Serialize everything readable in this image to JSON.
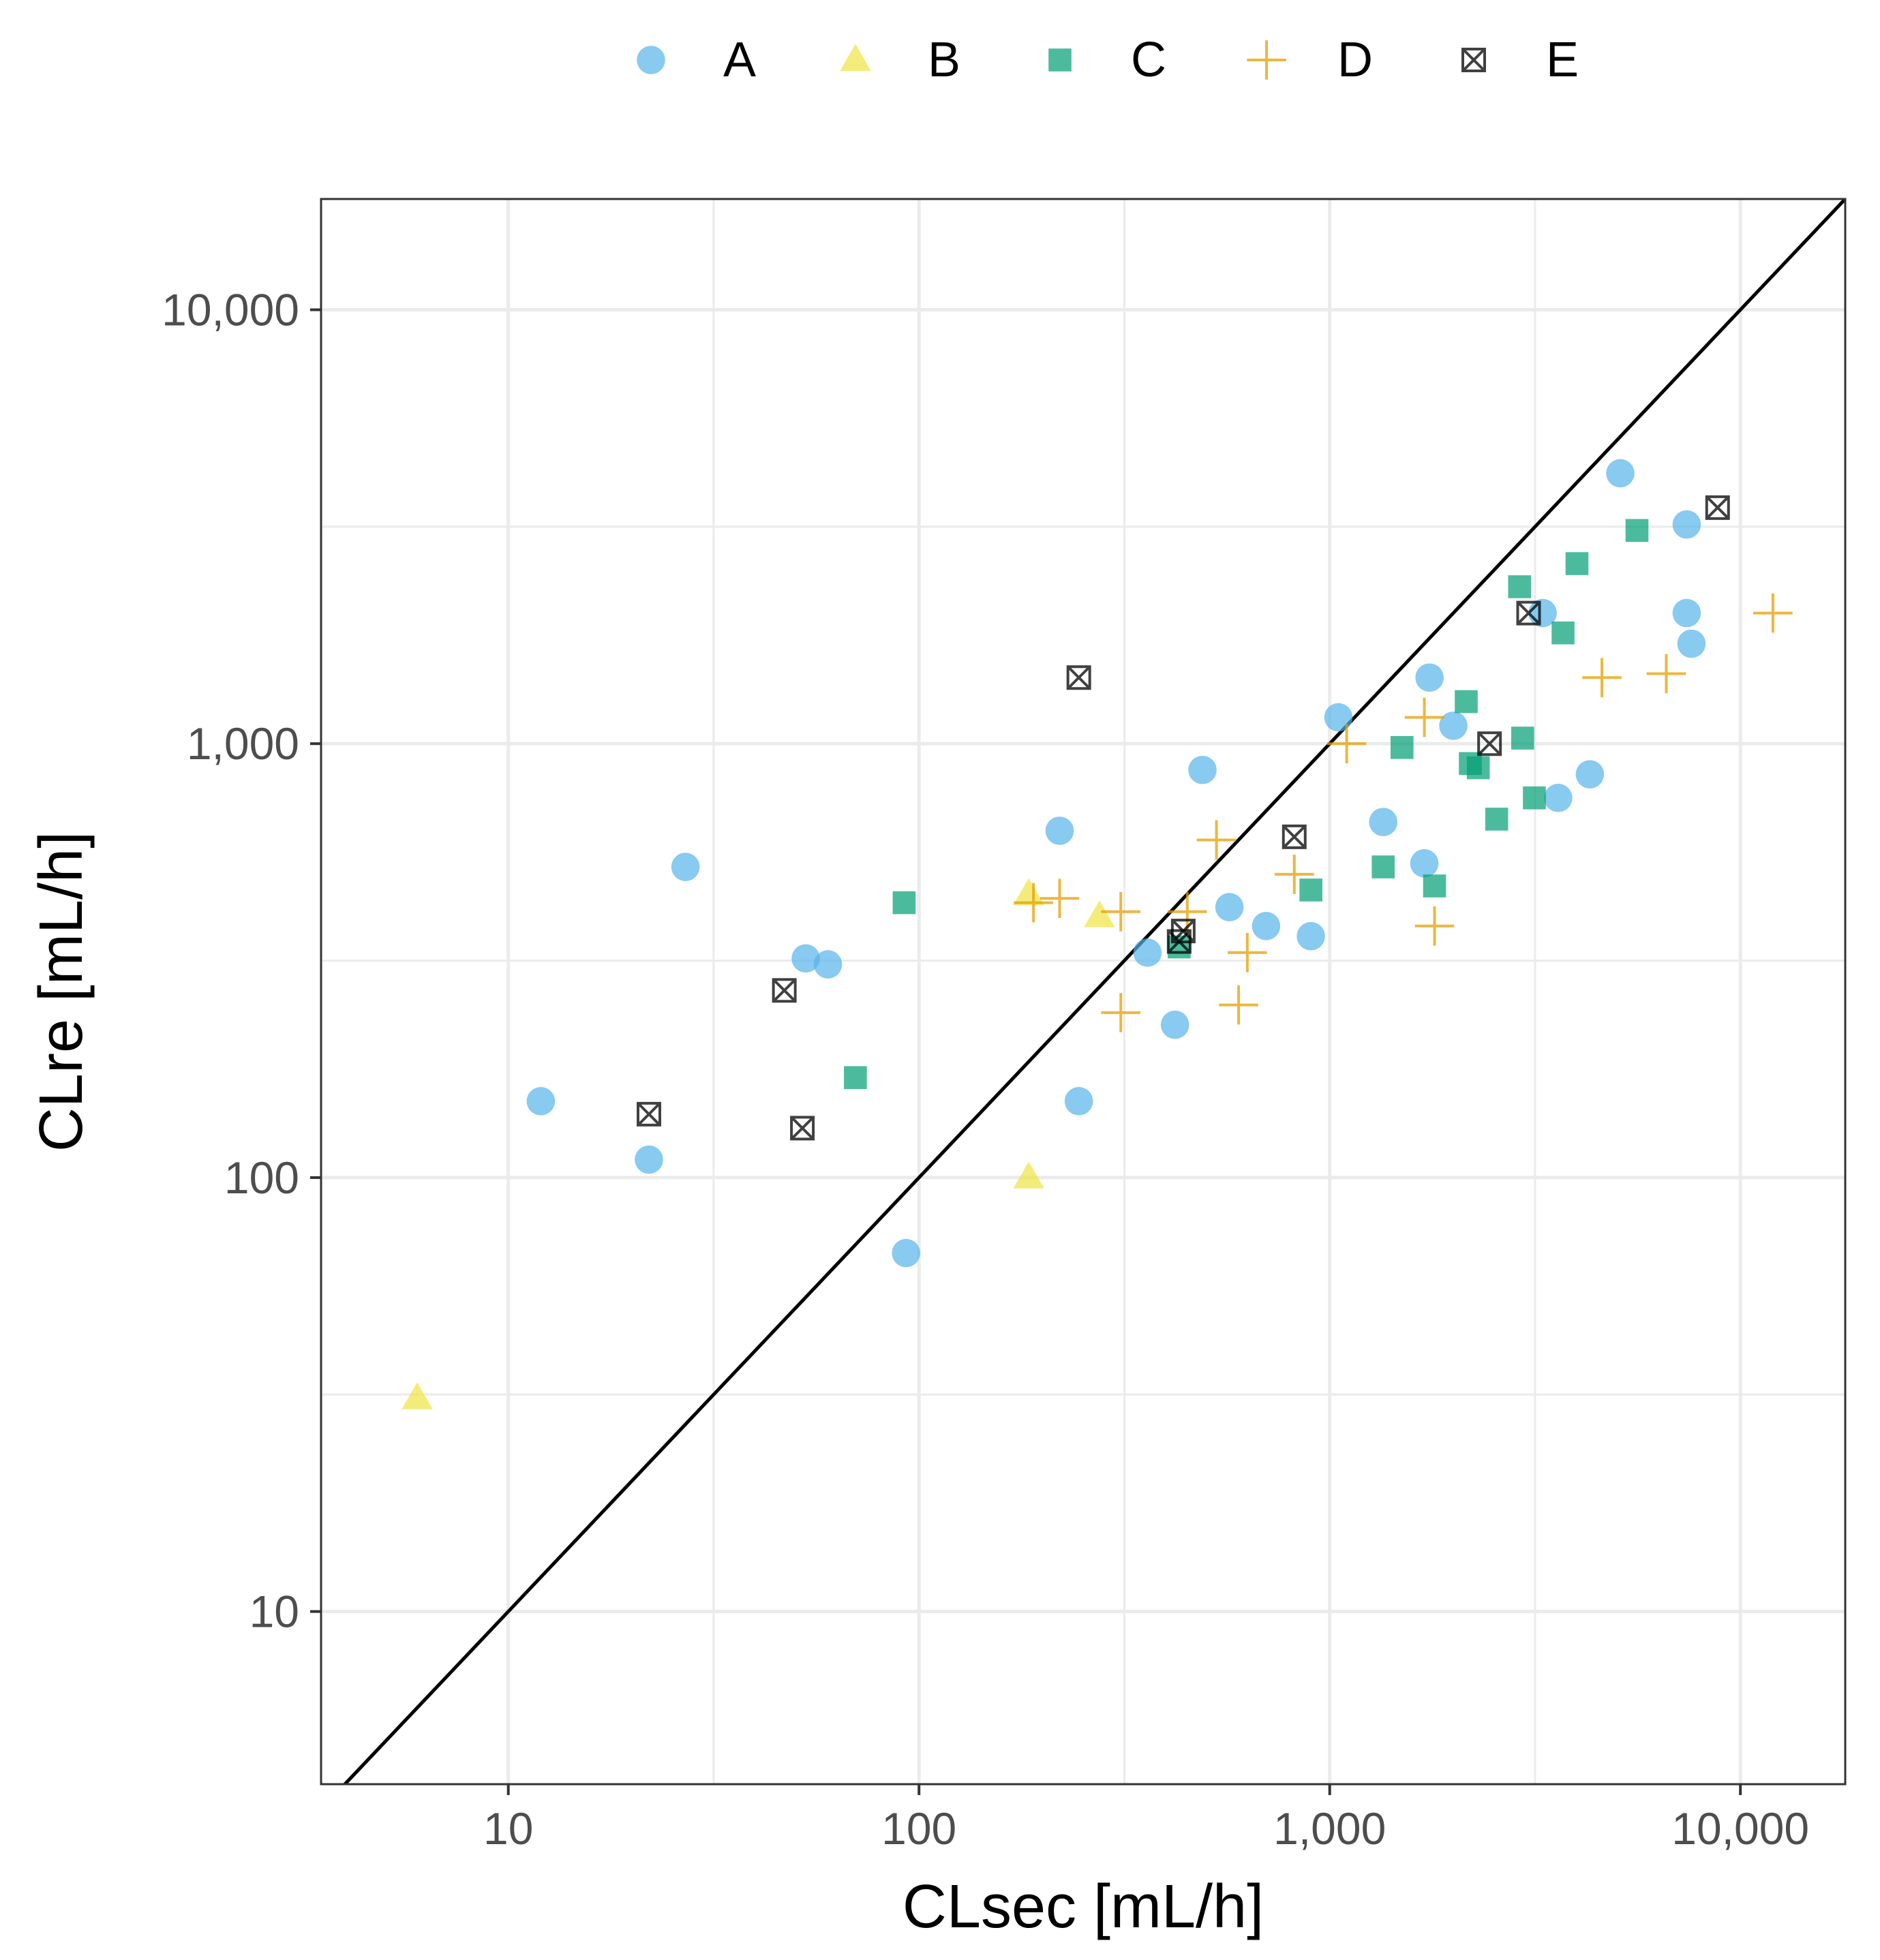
{
  "chart_data": {
    "type": "scatter",
    "title": "",
    "xlabel": "CLsec [mL/h]",
    "ylabel": "CLre [mL/h]",
    "xscale": "log10",
    "yscale": "log10",
    "xlim": [
      3.5,
      18000
    ],
    "ylim": [
      4,
      18000
    ],
    "x_ticks": [
      10,
      100,
      1000,
      10000
    ],
    "x_tick_labels": [
      "10",
      "100",
      "1,000",
      "10,000"
    ],
    "y_ticks": [
      10,
      100,
      1000,
      10000
    ],
    "y_tick_labels": [
      "10",
      "100",
      "1,000",
      "10,000"
    ],
    "grid": true,
    "reference_line": "identity (y = x)",
    "legend_position": "top",
    "series": [
      {
        "name": "A",
        "marker": "circle",
        "color": "#56B4E9",
        "x": [
          12,
          22,
          27,
          53,
          60,
          93,
          220,
          245,
          360,
          420,
          490,
          570,
          700,
          900,
          1050,
          1350,
          1700,
          1750,
          2000,
          3300,
          3600,
          4300,
          5100,
          7400,
          7400,
          7600
        ],
        "y": [
          150,
          110,
          520,
          320,
          310,
          67,
          630,
          150,
          330,
          225,
          870,
          420,
          380,
          360,
          1150,
          660,
          530,
          1420,
          1100,
          2000,
          750,
          850,
          4200,
          3200,
          2000,
          1700
        ]
      },
      {
        "name": "B",
        "marker": "triangle",
        "color": "#F0E442",
        "x": [
          6,
          185,
          185,
          275
        ],
        "y": [
          31,
          100,
          450,
          400
        ]
      },
      {
        "name": "C",
        "marker": "square",
        "color": "#009E73",
        "x": [
          70,
          92,
          430,
          900,
          1350,
          1500,
          1800,
          2150,
          2200,
          2300,
          2550,
          2900,
          2950,
          3150,
          3700,
          4000,
          5600
        ],
        "y": [
          170,
          430,
          340,
          460,
          520,
          980,
          470,
          1250,
          900,
          880,
          670,
          2300,
          1030,
          750,
          1800,
          2600,
          3100
        ]
      },
      {
        "name": "D",
        "marker": "plus",
        "color": "#E69F00",
        "x": [
          190,
          220,
          310,
          310,
          450,
          530,
          600,
          630,
          820,
          1100,
          1700,
          1800,
          4600,
          6600,
          12000
        ],
        "y": [
          430,
          440,
          410,
          240,
          410,
          600,
          250,
          330,
          500,
          1000,
          1150,
          380,
          1420,
          1450,
          2000
        ]
      },
      {
        "name": "E",
        "marker": "square-x",
        "color": "#000000",
        "x": [
          22,
          47,
          52,
          245,
          430,
          440,
          820,
          2450,
          3050,
          8800
        ],
        "y": [
          140,
          270,
          130,
          1420,
          350,
          370,
          610,
          1000,
          2000,
          3500
        ]
      }
    ]
  }
}
